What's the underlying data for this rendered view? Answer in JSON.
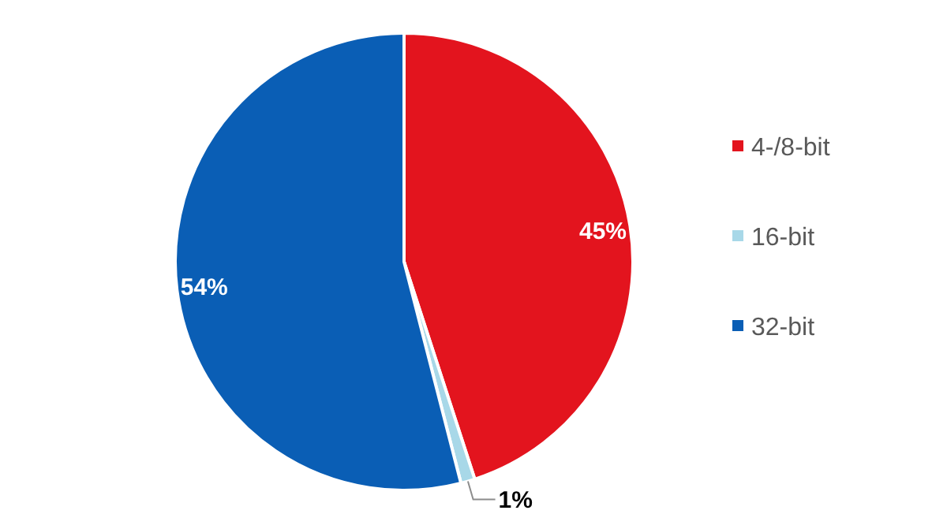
{
  "chart_data": {
    "type": "pie",
    "categories": [
      "4-/8-bit",
      "16-bit",
      "32-bit"
    ],
    "values": [
      45,
      1,
      54
    ],
    "colors": [
      "#e3141e",
      "#a8d8e8",
      "#0a5eb5"
    ],
    "value_labels": [
      "45%",
      "1%",
      "54%"
    ],
    "legend": "right"
  }
}
